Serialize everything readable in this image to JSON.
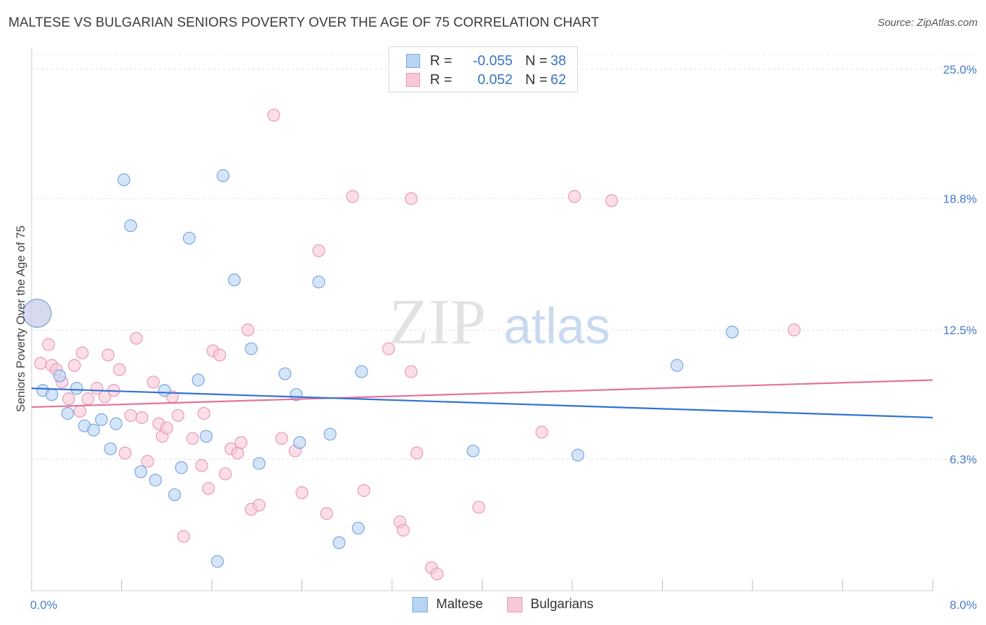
{
  "title": "MALTESE VS BULGARIAN SENIORS POVERTY OVER THE AGE OF 75 CORRELATION CHART",
  "source": "Source: ZipAtlas.com",
  "watermark": {
    "zip": "ZIP",
    "atlas": "atlas"
  },
  "colors": {
    "maltese_fill": "#b9d3f3",
    "maltese_stroke": "#7aa6df",
    "maltese_line": "#2f72cf",
    "bulgarian_fill": "#f8c8d8",
    "bulgarian_stroke": "#e99ab4",
    "bulgarian_line": "#e4729a",
    "tick_text": "#4a7cc7"
  },
  "legend": {
    "rows": [
      {
        "r_label": "R =",
        "r_value": "-0.055",
        "n_label": "N =",
        "n_value": "38"
      },
      {
        "r_label": "R =",
        "r_value": "0.052",
        "n_label": "N =",
        "n_value": "62"
      }
    ]
  },
  "bottom_legend": [
    "Maltese",
    "Bulgarians"
  ],
  "chart_data": {
    "type": "scatter",
    "title": "MALTESE VS BULGARIAN SENIORS POVERTY OVER THE AGE OF 75 CORRELATION CHART",
    "xlabel": "",
    "ylabel": "Seniors Poverty Over the Age of 75",
    "xlim": [
      0,
      8
    ],
    "ylim": [
      0,
      25.8
    ],
    "x_tick_labels": [
      "0.0%",
      "8.0%"
    ],
    "y_ticks": [
      6.3,
      12.5,
      18.8,
      25.0
    ],
    "y_tick_labels": [
      "6.3%",
      "12.5%",
      "18.8%",
      "25.0%"
    ],
    "grid": "horizontal dashed",
    "legend_position": "top-center",
    "series": [
      {
        "name": "Maltese",
        "points": [
          [
            0.05,
            13.3
          ],
          [
            0.1,
            9.6
          ],
          [
            0.18,
            9.4
          ],
          [
            0.25,
            10.3
          ],
          [
            0.32,
            8.5
          ],
          [
            0.4,
            9.7
          ],
          [
            0.47,
            7.9
          ],
          [
            0.55,
            7.7
          ],
          [
            0.62,
            8.2
          ],
          [
            0.7,
            6.8
          ],
          [
            0.75,
            8.0
          ],
          [
            0.82,
            19.7
          ],
          [
            0.88,
            17.5
          ],
          [
            0.97,
            5.7
          ],
          [
            1.1,
            5.3
          ],
          [
            1.18,
            9.6
          ],
          [
            1.27,
            4.6
          ],
          [
            1.33,
            5.9
          ],
          [
            1.4,
            16.9
          ],
          [
            1.48,
            10.1
          ],
          [
            1.55,
            7.4
          ],
          [
            1.65,
            1.4
          ],
          [
            1.7,
            19.9
          ],
          [
            1.8,
            14.9
          ],
          [
            1.95,
            11.6
          ],
          [
            2.02,
            6.1
          ],
          [
            2.25,
            10.4
          ],
          [
            2.35,
            9.4
          ],
          [
            2.38,
            7.1
          ],
          [
            2.55,
            14.8
          ],
          [
            2.65,
            7.5
          ],
          [
            2.73,
            2.3
          ],
          [
            2.9,
            3.0
          ],
          [
            2.93,
            10.5
          ],
          [
            3.92,
            6.7
          ],
          [
            4.85,
            6.5
          ],
          [
            5.73,
            10.8
          ],
          [
            6.22,
            12.4
          ]
        ]
      },
      {
        "name": "Bulgarians",
        "points": [
          [
            0.05,
            13.3
          ],
          [
            0.08,
            10.9
          ],
          [
            0.15,
            11.8
          ],
          [
            0.18,
            10.8
          ],
          [
            0.22,
            10.6
          ],
          [
            0.27,
            10.0
          ],
          [
            0.33,
            9.2
          ],
          [
            0.38,
            10.8
          ],
          [
            0.43,
            8.6
          ],
          [
            0.45,
            11.4
          ],
          [
            0.5,
            9.2
          ],
          [
            0.58,
            9.7
          ],
          [
            0.65,
            9.3
          ],
          [
            0.68,
            11.3
          ],
          [
            0.73,
            9.6
          ],
          [
            0.78,
            10.6
          ],
          [
            0.83,
            6.6
          ],
          [
            0.88,
            8.4
          ],
          [
            0.93,
            12.1
          ],
          [
            0.98,
            8.3
          ],
          [
            1.03,
            6.2
          ],
          [
            1.08,
            10.0
          ],
          [
            1.13,
            8.0
          ],
          [
            1.16,
            7.4
          ],
          [
            1.2,
            7.8
          ],
          [
            1.25,
            9.3
          ],
          [
            1.3,
            8.4
          ],
          [
            1.35,
            2.6
          ],
          [
            1.43,
            7.3
          ],
          [
            1.51,
            6.0
          ],
          [
            1.53,
            8.5
          ],
          [
            1.57,
            4.9
          ],
          [
            1.61,
            11.5
          ],
          [
            1.67,
            11.3
          ],
          [
            1.72,
            5.6
          ],
          [
            1.77,
            6.8
          ],
          [
            1.83,
            6.6
          ],
          [
            1.86,
            7.1
          ],
          [
            1.92,
            12.5
          ],
          [
            1.95,
            3.9
          ],
          [
            2.02,
            4.1
          ],
          [
            2.15,
            22.8
          ],
          [
            2.22,
            7.3
          ],
          [
            2.34,
            6.7
          ],
          [
            2.4,
            4.7
          ],
          [
            2.55,
            16.3
          ],
          [
            2.62,
            3.7
          ],
          [
            2.85,
            18.9
          ],
          [
            2.95,
            4.8
          ],
          [
            3.17,
            11.6
          ],
          [
            3.27,
            3.3
          ],
          [
            3.3,
            2.9
          ],
          [
            3.37,
            18.8
          ],
          [
            3.37,
            10.5
          ],
          [
            3.42,
            6.6
          ],
          [
            3.55,
            1.1
          ],
          [
            3.6,
            0.8
          ],
          [
            3.97,
            4.0
          ],
          [
            4.53,
            7.6
          ],
          [
            4.82,
            18.9
          ],
          [
            5.15,
            18.7
          ],
          [
            6.77,
            12.5
          ]
        ]
      }
    ],
    "trend_lines": [
      {
        "series": "Maltese",
        "y_at_x0": 9.7,
        "y_at_x8": 8.3
      },
      {
        "series": "Bulgarians",
        "y_at_x0": 8.8,
        "y_at_x8": 10.1
      }
    ]
  }
}
